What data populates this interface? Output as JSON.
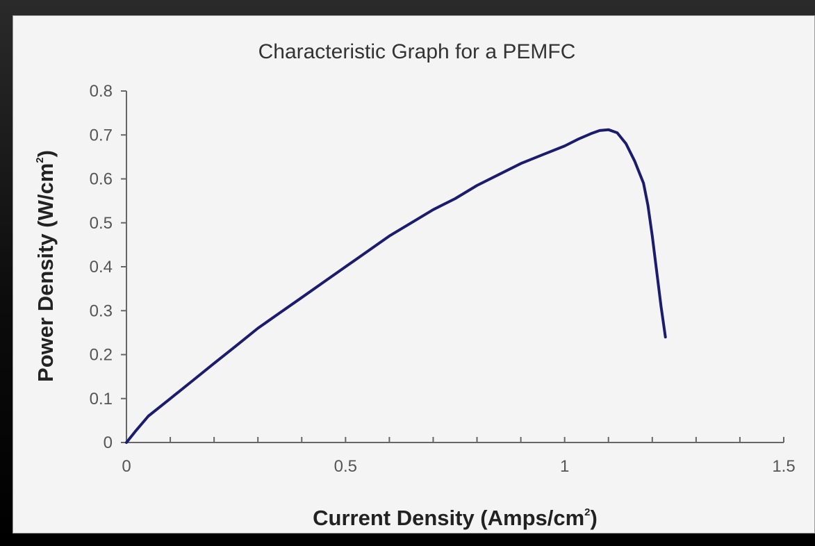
{
  "chart_data": {
    "type": "line",
    "title": "Characteristic Graph for a PEMFC",
    "xlabel": "Current Density (Amps/cm",
    "xlabel_sup": "2",
    "xlabel_close": ")",
    "ylabel": "Power Density (W/cm",
    "ylabel_sup": "2",
    "ylabel_close": ")",
    "xlim": [
      0,
      1.5
    ],
    "ylim": [
      0,
      0.8
    ],
    "xticks": [
      "0",
      "0.5",
      "1",
      "1.5"
    ],
    "yticks": [
      "0",
      "0.1",
      "0.2",
      "0.3",
      "0.4",
      "0.5",
      "0.6",
      "0.7",
      "0.8"
    ],
    "grid": false,
    "line_color": "#1c1c6e",
    "series": [
      {
        "x": [
          0,
          0.02,
          0.05,
          0.1,
          0.15,
          0.2,
          0.25,
          0.3,
          0.35,
          0.4,
          0.45,
          0.5,
          0.55,
          0.6,
          0.65,
          0.7,
          0.75,
          0.8,
          0.85,
          0.9,
          0.95,
          1.0,
          1.03,
          1.06,
          1.08,
          1.1,
          1.12,
          1.14,
          1.16,
          1.18,
          1.19,
          1.2,
          1.21,
          1.22,
          1.23
        ],
        "y": [
          0,
          0.025,
          0.06,
          0.1,
          0.14,
          0.18,
          0.22,
          0.26,
          0.295,
          0.33,
          0.365,
          0.4,
          0.435,
          0.47,
          0.5,
          0.53,
          0.555,
          0.585,
          0.61,
          0.635,
          0.655,
          0.675,
          0.69,
          0.703,
          0.71,
          0.712,
          0.705,
          0.68,
          0.64,
          0.59,
          0.54,
          0.47,
          0.39,
          0.31,
          0.24
        ]
      }
    ]
  }
}
